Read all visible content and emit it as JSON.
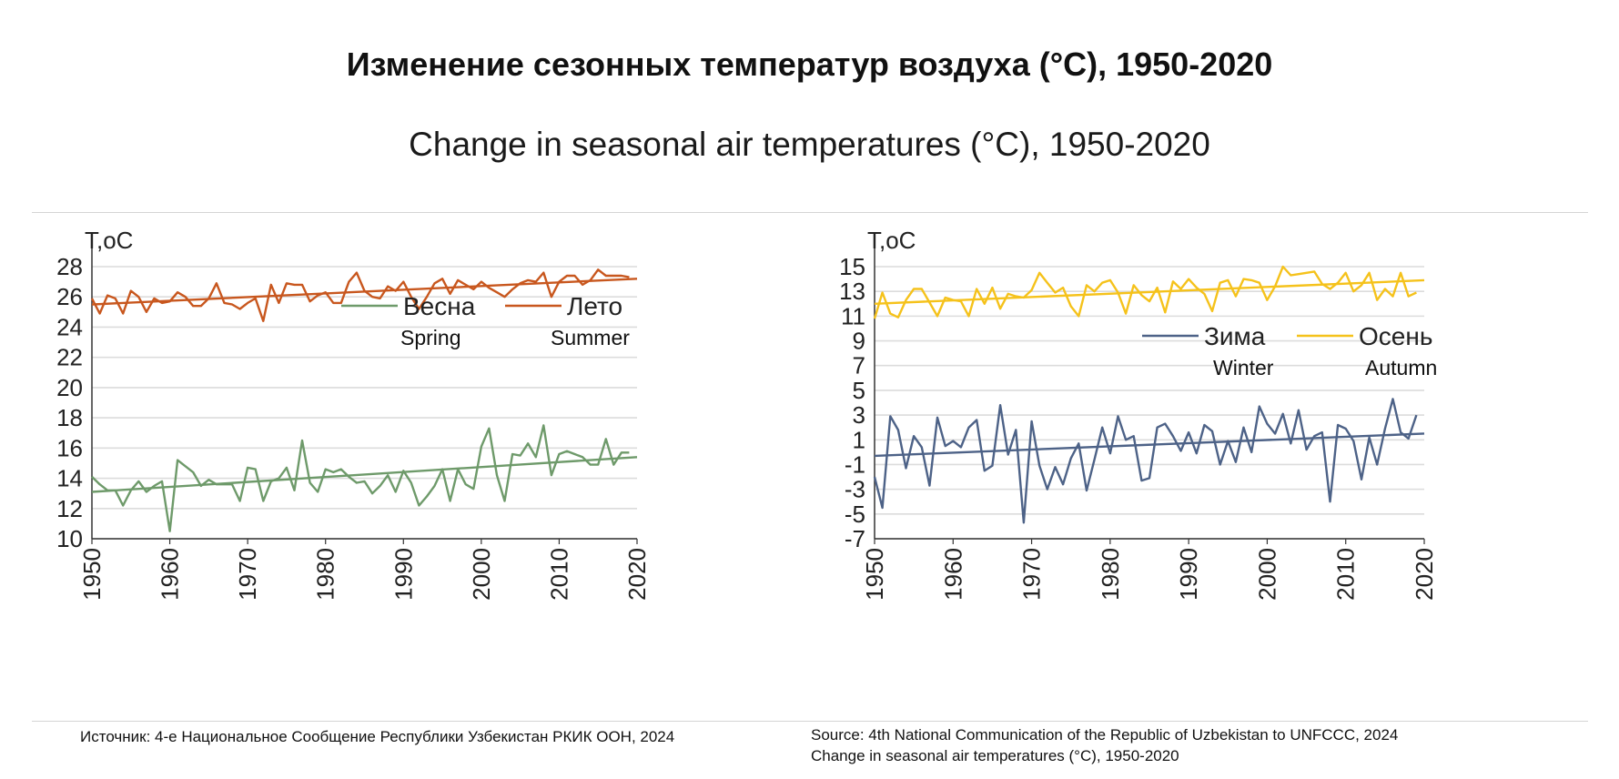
{
  "title_ru": "Изменение сезонных температур воздуха (°C), 1950-2020",
  "title_en": "Change in seasonal air temperatures (°C), 1950-2020",
  "source_ru": "Источник: 4-е Национальное Сообщение Республики Узбекистан РКИК ООН, 2024",
  "source_en": "Source: 4th National Communication of the Republic of Uzbekistan to UNFCCC, 2024",
  "caption_en": "Change in seasonal air temperatures (°C), 1950-2020",
  "chart_data": [
    {
      "type": "line",
      "ylabel": "T,oC",
      "ylim": [
        10,
        28
      ],
      "yticks": [
        10,
        12,
        14,
        16,
        18,
        20,
        22,
        24,
        26,
        28
      ],
      "xlim": [
        1950,
        2020
      ],
      "xticks": [
        1950,
        1960,
        1970,
        1980,
        1990,
        2000,
        2010,
        2020
      ],
      "grid": true,
      "legend_position": "upper-right",
      "series": [
        {
          "name": "Весна",
          "name_en": "Spring",
          "color": "#6e9a6a",
          "x": [
            1950,
            1951,
            1952,
            1953,
            1954,
            1955,
            1956,
            1957,
            1958,
            1959,
            1960,
            1961,
            1962,
            1963,
            1964,
            1965,
            1966,
            1967,
            1968,
            1969,
            1970,
            1971,
            1972,
            1973,
            1974,
            1975,
            1976,
            1977,
            1978,
            1979,
            1980,
            1981,
            1982,
            1983,
            1984,
            1985,
            1986,
            1987,
            1988,
            1989,
            1990,
            1991,
            1992,
            1993,
            1994,
            1995,
            1996,
            1997,
            1998,
            1999,
            2000,
            2001,
            2002,
            2003,
            2004,
            2005,
            2006,
            2007,
            2008,
            2009,
            2010,
            2011,
            2012,
            2013,
            2014,
            2015,
            2016,
            2017,
            2018,
            2019
          ],
          "y": [
            14.1,
            13.6,
            13.2,
            13.2,
            12.2,
            13.2,
            13.8,
            13.1,
            13.5,
            13.8,
            10.5,
            15.2,
            14.8,
            14.4,
            13.5,
            13.9,
            13.6,
            13.6,
            13.6,
            12.5,
            14.7,
            14.6,
            12.5,
            13.8,
            14.0,
            14.7,
            13.2,
            16.5,
            13.7,
            13.1,
            14.6,
            14.4,
            14.6,
            14.1,
            13.7,
            13.8,
            13.0,
            13.5,
            14.2,
            13.1,
            14.5,
            13.7,
            12.2,
            12.8,
            13.5,
            14.6,
            12.5,
            14.6,
            13.6,
            13.3,
            16.1,
            17.3,
            14.2,
            12.5,
            15.6,
            15.5,
            16.3,
            15.4,
            17.5,
            14.2,
            15.6,
            15.8,
            15.6,
            15.4,
            14.9,
            14.9,
            16.6,
            14.9,
            15.7,
            15.7
          ],
          "trend": [
            [
              1950,
              13.1
            ],
            [
              2020,
              15.4
            ]
          ]
        },
        {
          "name": "Лето",
          "name_en": "Summer",
          "color": "#c8571e",
          "x": [
            1950,
            1951,
            1952,
            1953,
            1954,
            1955,
            1956,
            1957,
            1958,
            1959,
            1960,
            1961,
            1962,
            1963,
            1964,
            1965,
            1966,
            1967,
            1968,
            1969,
            1970,
            1971,
            1972,
            1973,
            1974,
            1975,
            1976,
            1977,
            1978,
            1979,
            1980,
            1981,
            1982,
            1983,
            1984,
            1985,
            1986,
            1987,
            1988,
            1989,
            1990,
            1991,
            1992,
            1993,
            1994,
            1995,
            1996,
            1997,
            1998,
            1999,
            2000,
            2001,
            2002,
            2003,
            2004,
            2005,
            2006,
            2007,
            2008,
            2009,
            2010,
            2011,
            2012,
            2013,
            2014,
            2015,
            2016,
            2017,
            2018,
            2019
          ],
          "y": [
            25.9,
            24.9,
            26.1,
            25.9,
            24.9,
            26.4,
            26.0,
            25.0,
            25.9,
            25.6,
            25.7,
            26.3,
            26.0,
            25.4,
            25.4,
            25.9,
            26.9,
            25.6,
            25.5,
            25.2,
            25.6,
            25.9,
            24.4,
            26.8,
            25.6,
            26.9,
            26.8,
            26.8,
            25.7,
            26.1,
            26.3,
            25.6,
            25.6,
            27.0,
            27.6,
            26.4,
            26.0,
            25.9,
            26.7,
            26.4,
            27.0,
            26.0,
            25.2,
            26.0,
            26.9,
            27.2,
            26.2,
            27.1,
            26.8,
            26.5,
            27.0,
            26.6,
            26.3,
            26.0,
            26.5,
            26.9,
            27.1,
            27.0,
            27.6,
            26.0,
            27.0,
            27.4,
            27.4,
            26.8,
            27.1,
            27.8,
            27.4,
            27.4,
            27.4,
            27.3
          ],
          "trend": [
            [
              1950,
              25.5
            ],
            [
              2020,
              27.2
            ]
          ]
        }
      ]
    },
    {
      "type": "line",
      "ylabel": "T,oC",
      "ylim": [
        -7,
        15
      ],
      "yticks": [
        -7,
        -5,
        -3,
        -1,
        1,
        3,
        5,
        7,
        9,
        11,
        13,
        15
      ],
      "xlim": [
        1950,
        2020
      ],
      "xticks": [
        1950,
        1960,
        1970,
        1980,
        1990,
        2000,
        2010,
        2020
      ],
      "grid": true,
      "legend_position": "middle-right",
      "series": [
        {
          "name": "Зима",
          "name_en": "Winter",
          "color": "#4d6287",
          "x": [
            1950,
            1951,
            1952,
            1953,
            1954,
            1955,
            1956,
            1957,
            1958,
            1959,
            1960,
            1961,
            1962,
            1963,
            1964,
            1965,
            1966,
            1967,
            1968,
            1969,
            1970,
            1971,
            1972,
            1973,
            1974,
            1975,
            1976,
            1977,
            1978,
            1979,
            1980,
            1981,
            1982,
            1983,
            1984,
            1985,
            1986,
            1987,
            1988,
            1989,
            1990,
            1991,
            1992,
            1993,
            1994,
            1995,
            1996,
            1997,
            1998,
            1999,
            2000,
            2001,
            2002,
            2003,
            2004,
            2005,
            2006,
            2007,
            2008,
            2009,
            2010,
            2011,
            2012,
            2013,
            2014,
            2015,
            2016,
            2017,
            2018,
            2019
          ],
          "y": [
            -2.0,
            -4.5,
            2.9,
            1.8,
            -1.3,
            1.3,
            0.4,
            -2.7,
            2.8,
            0.5,
            0.9,
            0.4,
            2.0,
            2.6,
            -1.5,
            -1.1,
            3.8,
            -0.2,
            1.8,
            -5.7,
            2.5,
            -1.1,
            -3.0,
            -1.2,
            -2.6,
            -0.5,
            0.7,
            -3.1,
            -0.6,
            2.0,
            -0.1,
            2.9,
            1.0,
            1.3,
            -2.3,
            -2.1,
            2.0,
            2.3,
            1.3,
            0.1,
            1.6,
            -0.1,
            2.2,
            1.7,
            -1.0,
            0.9,
            -0.8,
            2.0,
            0.0,
            3.7,
            2.3,
            1.5,
            3.1,
            0.7,
            3.4,
            0.2,
            1.3,
            1.6,
            -4.0,
            2.2,
            1.9,
            0.9,
            -2.2,
            1.2,
            -1.0,
            1.9,
            4.3,
            1.6,
            1.1,
            3.0
          ],
          "trend": [
            [
              1950,
              -0.3
            ],
            [
              2020,
              1.5
            ]
          ]
        },
        {
          "name": "Осень",
          "name_en": "Autumn",
          "color": "#f5c21b",
          "x": [
            1950,
            1951,
            1952,
            1953,
            1954,
            1955,
            1956,
            1957,
            1958,
            1959,
            1960,
            1961,
            1962,
            1963,
            1964,
            1965,
            1966,
            1967,
            1968,
            1969,
            1970,
            1971,
            1972,
            1973,
            1974,
            1975,
            1976,
            1977,
            1978,
            1979,
            1980,
            1981,
            1982,
            1983,
            1984,
            1985,
            1986,
            1987,
            1988,
            1989,
            1990,
            1991,
            1992,
            1993,
            1994,
            1995,
            1996,
            1997,
            1998,
            1999,
            2000,
            2001,
            2002,
            2003,
            2004,
            2005,
            2006,
            2007,
            2008,
            2009,
            2010,
            2011,
            2012,
            2013,
            2014,
            2015,
            2016,
            2017,
            2018,
            2019
          ],
          "y": [
            10.8,
            12.9,
            11.2,
            10.9,
            12.3,
            13.2,
            13.2,
            12.1,
            11.0,
            12.5,
            12.3,
            12.2,
            11.0,
            13.2,
            12.0,
            13.3,
            11.6,
            12.8,
            12.6,
            12.5,
            13.1,
            14.5,
            13.7,
            12.9,
            13.3,
            11.8,
            11.0,
            13.5,
            13.0,
            13.7,
            13.9,
            12.9,
            11.2,
            13.5,
            12.7,
            12.2,
            13.3,
            11.3,
            13.8,
            13.2,
            14.0,
            13.3,
            12.8,
            11.4,
            13.7,
            13.9,
            12.6,
            14.0,
            13.9,
            13.7,
            12.3,
            13.4,
            15.0,
            14.3,
            14.4,
            14.5,
            14.6,
            13.6,
            13.2,
            13.7,
            14.5,
            13.0,
            13.5,
            14.5,
            12.3,
            13.2,
            12.6,
            14.5,
            12.6,
            12.9
          ],
          "trend": [
            [
              1950,
              12.0
            ],
            [
              2020,
              13.9
            ]
          ]
        }
      ]
    }
  ]
}
